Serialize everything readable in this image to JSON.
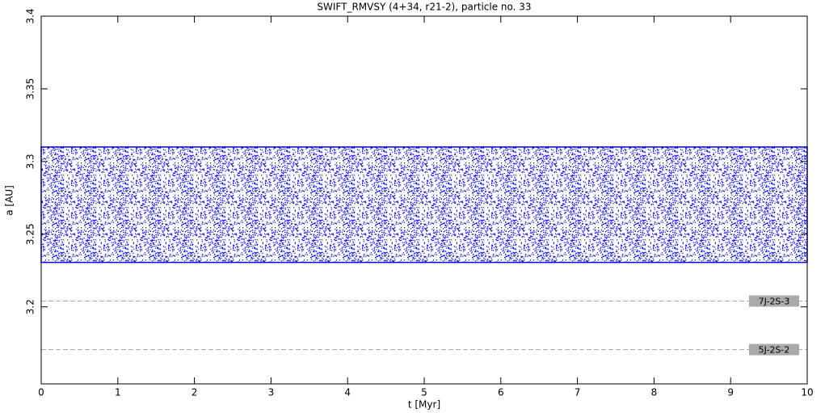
{
  "chart_data": {
    "type": "band",
    "title": "SWIFT_RMVSY (4+34, r21-2), particle no. 33",
    "xlabel": "t [Myr]",
    "ylabel": "a [AU]",
    "xlim": [
      0,
      10
    ],
    "xticks": [
      0,
      1,
      2,
      3,
      4,
      5,
      6,
      7,
      8,
      9,
      10
    ],
    "ylim": [
      3.147,
      3.4
    ],
    "yticks": [
      3.2,
      3.25,
      3.3,
      3.35,
      3.4
    ],
    "x": [
      0,
      10
    ],
    "lower": [
      3.2306,
      3.2306
    ],
    "upper": [
      3.31,
      3.31
    ],
    "color": "#0000ff",
    "resonances": [
      {
        "label": "7J-2S-3",
        "value": 3.204
      },
      {
        "label": "5J-2S-2",
        "value": 3.1706
      }
    ],
    "resonance_color": "#aaaaaa"
  }
}
